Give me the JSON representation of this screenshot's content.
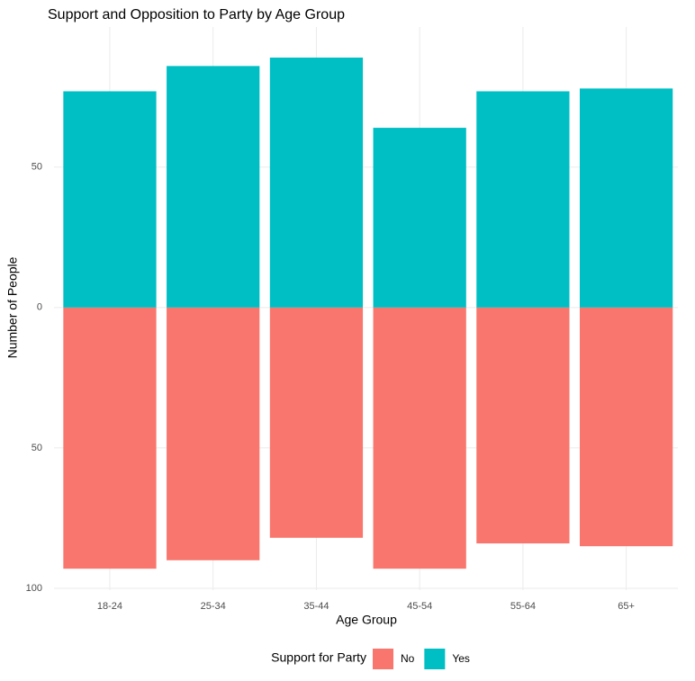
{
  "chart_data": {
    "type": "bar",
    "title": "Support and Opposition to Party by Age Group",
    "x_label": "Age Group",
    "y_label": "Number of People",
    "legend_title": "Support for Party",
    "categories": [
      "18-24",
      "25-34",
      "35-44",
      "45-54",
      "55-64",
      "65+"
    ],
    "series": [
      {
        "name": "No",
        "color": "#F8766D",
        "values": [
          -93,
          -90,
          -82,
          -93,
          -84,
          -85
        ]
      },
      {
        "name": "Yes",
        "color": "#00BFC4",
        "values": [
          77,
          86,
          89,
          64,
          77,
          78
        ]
      }
    ],
    "ylim": [
      -100,
      99
    ],
    "yticks": [
      {
        "value": -100,
        "label": "100"
      },
      {
        "value": -50,
        "label": "50"
      },
      0,
      50
    ],
    "grid": true,
    "legend": "bottom"
  }
}
